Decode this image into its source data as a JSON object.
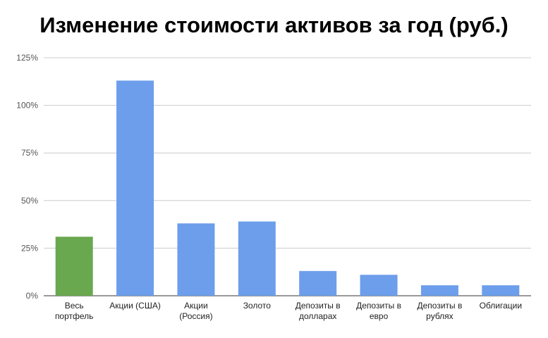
{
  "chart_data": {
    "type": "bar",
    "title": "Изменение стоимости активов за год (руб.)",
    "xlabel": "",
    "ylabel": "",
    "ylim": [
      0,
      125
    ],
    "yticks": [
      0,
      25,
      50,
      75,
      100,
      125
    ],
    "ytick_labels": [
      "0%",
      "25%",
      "50%",
      "75%",
      "100%",
      "125%"
    ],
    "grid": true,
    "legend": "none",
    "categories": [
      [
        "Весь",
        "портфель"
      ],
      [
        "Акции (США)"
      ],
      [
        "Акции",
        "(Россия)"
      ],
      [
        "Золото"
      ],
      [
        "Депозиты в",
        "долларах"
      ],
      [
        "Депозиты в",
        "евро"
      ],
      [
        "Депозиты в",
        "рублях"
      ],
      [
        "Облигации"
      ]
    ],
    "values": [
      31,
      113,
      38,
      39,
      13,
      11,
      5.5,
      5.5
    ],
    "colors": [
      "#6aa84f",
      "#6d9eeb",
      "#6d9eeb",
      "#6d9eeb",
      "#6d9eeb",
      "#6d9eeb",
      "#6d9eeb",
      "#6d9eeb"
    ],
    "grid_color": "#cccccc",
    "axis_color": "#333333"
  }
}
